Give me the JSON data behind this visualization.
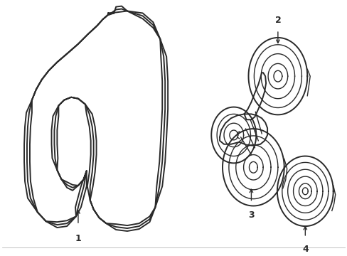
{
  "background_color": "#ffffff",
  "line_color": "#2a2a2a",
  "line_width": 1.4,
  "label_color": "#000000",
  "fig_w": 4.89,
  "fig_h": 3.6,
  "dpi": 100
}
